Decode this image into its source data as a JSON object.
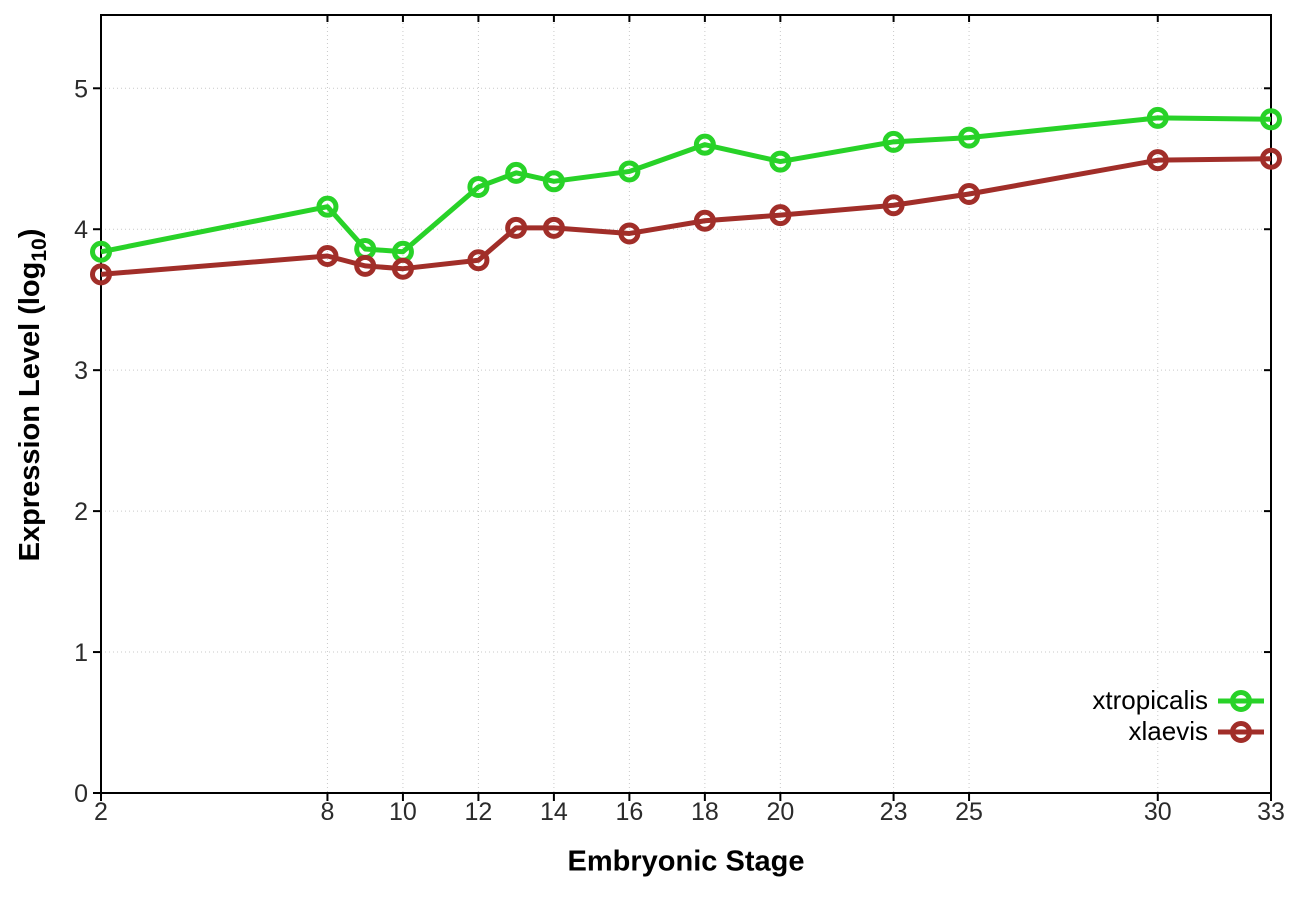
{
  "figure": {
    "background": "#ffffff",
    "xlabel": "Embryonic Stage",
    "ylabel_main": "Expression Level (log",
    "ylabel_sub": "10",
    "ylabel_close": ")"
  },
  "chart_data": {
    "type": "line",
    "title": "",
    "xlabel": "Embryonic Stage",
    "ylabel": "Expression Level (log10)",
    "xlim": [
      2,
      33
    ],
    "ylim": [
      0,
      5.52
    ],
    "x_ticks": [
      2,
      8,
      10,
      12,
      14,
      16,
      18,
      20,
      23,
      25,
      30,
      33
    ],
    "y_ticks": [
      0,
      1,
      2,
      3,
      4,
      5
    ],
    "grid": true,
    "grid_style": "dotted",
    "legend_position": "inside-bottom-right",
    "marker": "open-circle",
    "x": [
      2,
      8,
      9,
      10,
      12,
      13,
      14,
      16,
      18,
      20,
      23,
      25,
      30,
      33
    ],
    "series": [
      {
        "name": "xtropicalis",
        "color": "#28d228",
        "values": [
          3.84,
          4.16,
          3.86,
          3.84,
          4.3,
          4.4,
          4.34,
          4.41,
          4.6,
          4.48,
          4.62,
          4.65,
          4.79,
          4.78
        ]
      },
      {
        "name": "xlaevis",
        "color": "#a12e29",
        "values": [
          3.68,
          3.81,
          3.74,
          3.72,
          3.78,
          4.01,
          4.01,
          3.97,
          4.06,
          4.1,
          4.17,
          4.25,
          4.49,
          4.5
        ]
      }
    ]
  }
}
